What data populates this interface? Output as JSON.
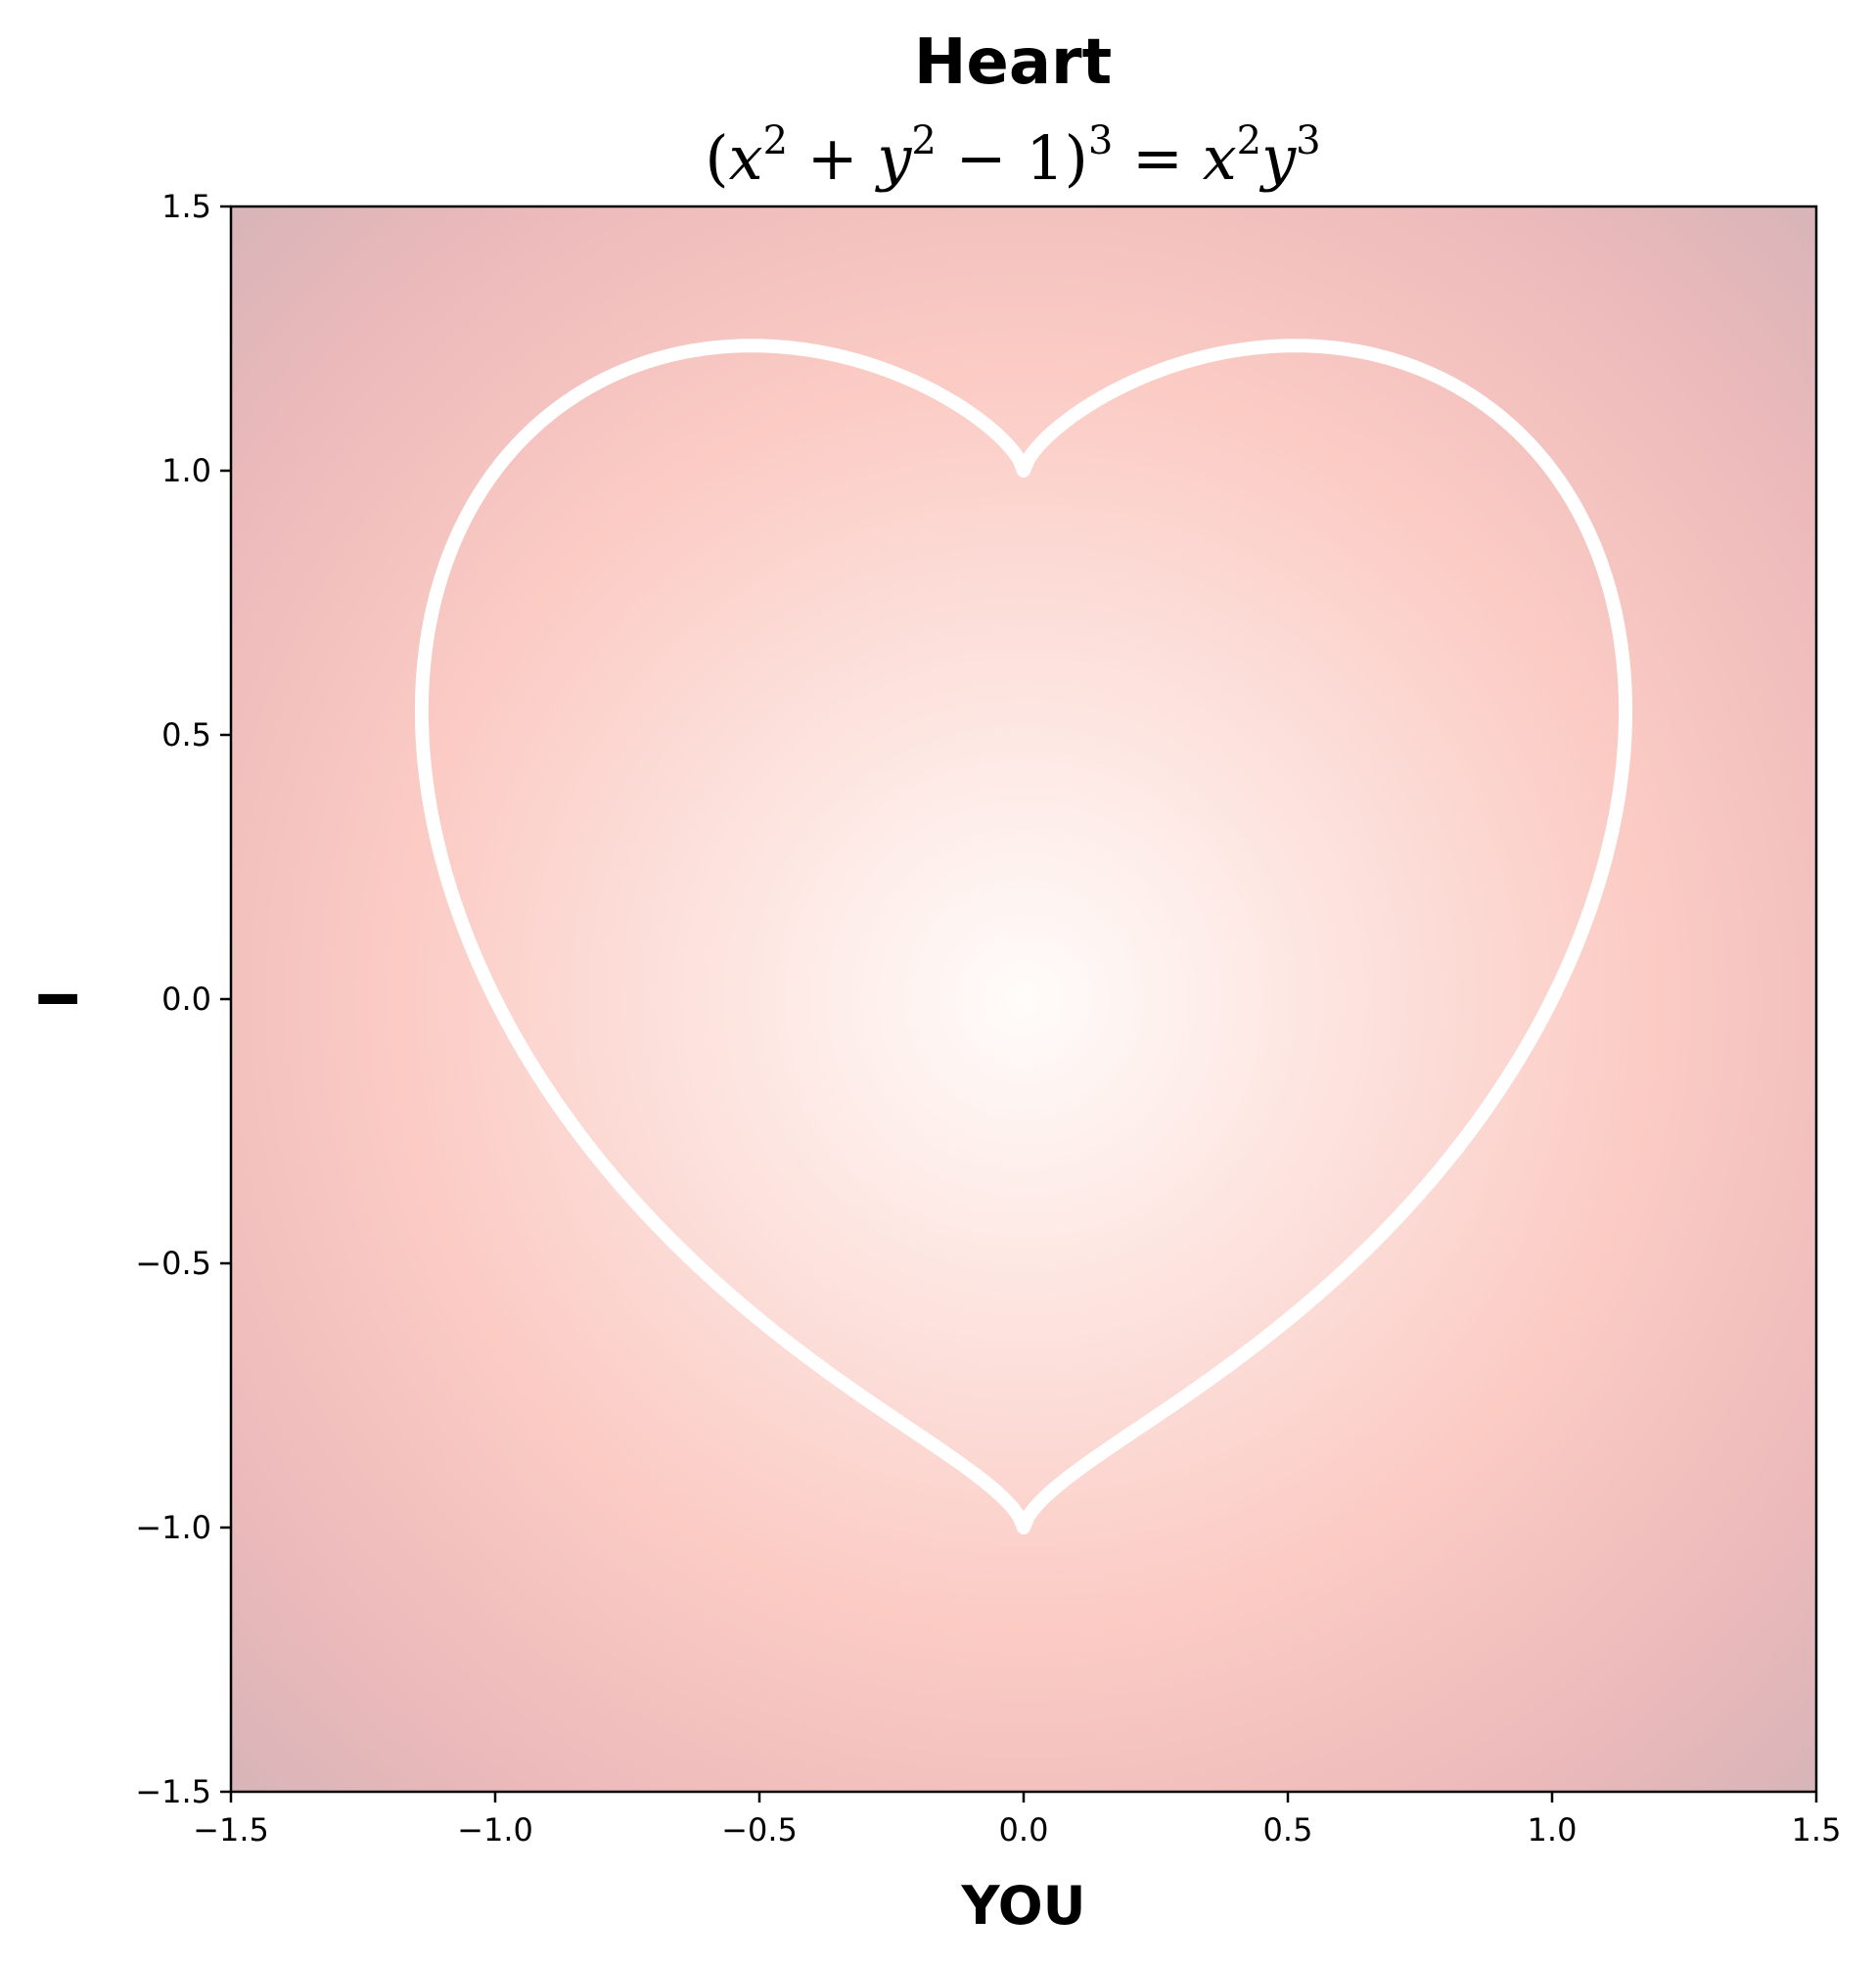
{
  "chart_data": {
    "type": "line",
    "title": "Heart",
    "subtitle": {
      "open": "(",
      "x": "x",
      "sup2a": "2",
      "plus": " + ",
      "y": "y",
      "sup2b": "2",
      "minus": " − 1)",
      "sup3a": "3",
      "equals": " = ",
      "x2": "x",
      "sup2c": "2",
      "y2": "y",
      "sup3b": "3"
    },
    "xlabel": "YOU",
    "ylabel": "I",
    "xlim": [
      -1.5,
      1.5
    ],
    "ylim": [
      -1.5,
      1.5
    ],
    "xticks": [
      -1.5,
      -1.0,
      -0.5,
      0.0,
      0.5,
      1.0,
      1.5
    ],
    "yticks": [
      -1.5,
      -1.0,
      -0.5,
      0.0,
      0.5,
      1.0,
      1.5
    ],
    "xtick_labels": [
      "−1.5",
      "−1.0",
      "−0.5",
      "0.0",
      "0.5",
      "1.0",
      "1.5"
    ],
    "ytick_labels": [
      "−1.5",
      "−1.0",
      "−0.5",
      "0.0",
      "0.5",
      "1.0",
      "1.5"
    ],
    "grid": false,
    "curve": {
      "equation": "(x^2 + y^2 - 1)^3 = x^2 y^3",
      "color": "#ffffff"
    },
    "background": {
      "center_color": "#fffcfa",
      "mid_color": "#fbcbc4",
      "edge_color": "#ebb9ba",
      "corner_color": "#d5b4b8"
    }
  }
}
